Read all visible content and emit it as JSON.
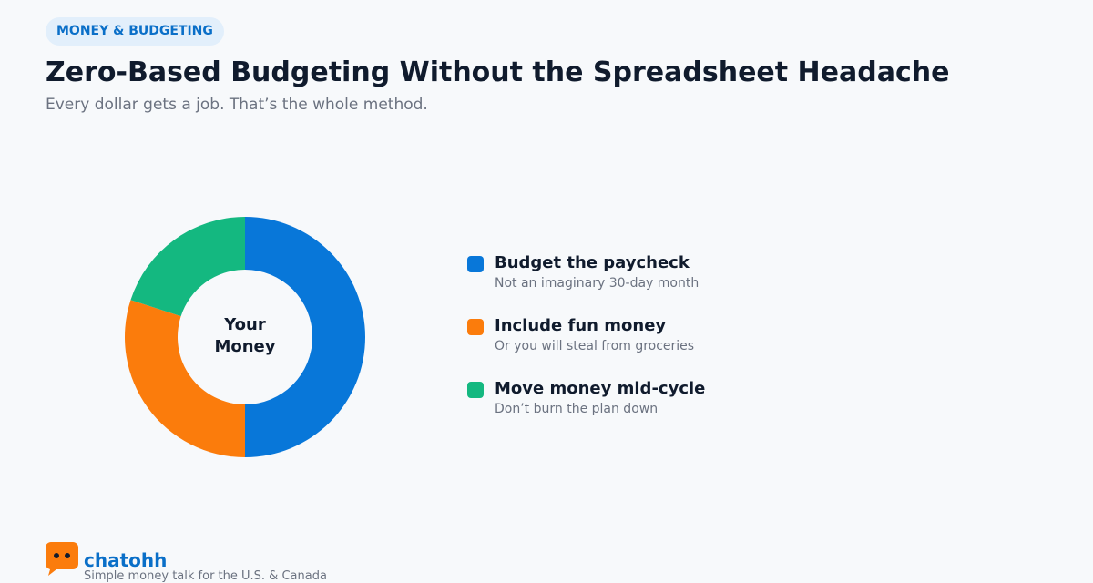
{
  "badge": "MONEY & BUDGETING",
  "title": "Zero-Based Budgeting Without the Spreadsheet Headache",
  "subtitle": "Every dollar gets a job. That’s the whole method.",
  "chart_data": {
    "type": "pie",
    "center_label": "Your Money",
    "categories": [
      "Budget the paycheck",
      "Include fun money",
      "Move money mid-cycle"
    ],
    "descriptions": [
      "Not an imaginary 30-day month",
      "Or you will steal from groceries",
      "Don’t burn the plan down"
    ],
    "values": [
      50,
      30,
      20
    ],
    "colors": [
      "#0877d9",
      "#fb7c0c",
      "#14b880"
    ]
  },
  "footer": {
    "brand": "chatohh",
    "tagline": "Simple money talk for the U.S. & Canada"
  }
}
